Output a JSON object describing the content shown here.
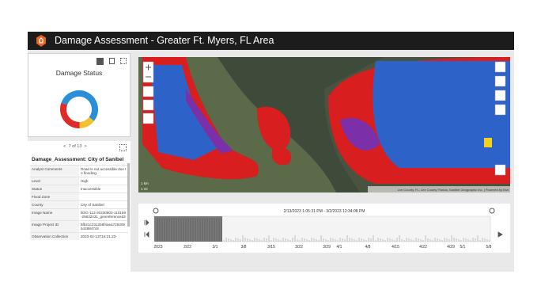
{
  "header": {
    "title": "Damage Assessment - Greater Ft. Myers, FL Area"
  },
  "damage_status": {
    "title": "Damage Status",
    "segments": [
      {
        "color": "#2b8fd8",
        "value": 55
      },
      {
        "color": "#f2c12e",
        "value": 14
      },
      {
        "color": "#e02b2b",
        "value": 31
      }
    ]
  },
  "details": {
    "pager": "7 of 13",
    "title": "Damage_Assessment: City of Sanibel",
    "rows": [
      [
        "Analyst Comments",
        "Road is not accessible due to flooding."
      ],
      [
        "Level",
        "High"
      ],
      [
        "Status",
        "Inaccessible"
      ],
      [
        "Flood Zone"
      ],
      [
        "County",
        "City of Sanibel"
      ],
      [
        "Image Name",
        "BSG-113-20230602-110156-25632431_georeferenced3"
      ],
      [
        "Image Project ID",
        "5fb21c2312b8f4aea7283095428847c8"
      ],
      [
        "Observation Collection",
        "2023-02-13T16:21:23-"
      ]
    ]
  },
  "map": {
    "attribution": "Lee County, FL, Lee County Florida, Sanibel Geographic Inc. | Powered by Esri",
    "scale": [
      "1 km",
      "1 mi"
    ]
  },
  "timeline": {
    "range": "2/13/2023 1:05:31 PM - 3/2/2023 12:34:08 PM",
    "ticks": [
      "2023",
      "2/22",
      "3/1",
      "3/8",
      "3/15",
      "3/22",
      "3/29",
      "4/1",
      "4/8",
      "4/15",
      "4/22",
      "4/29",
      "5/1",
      "5/8"
    ]
  }
}
